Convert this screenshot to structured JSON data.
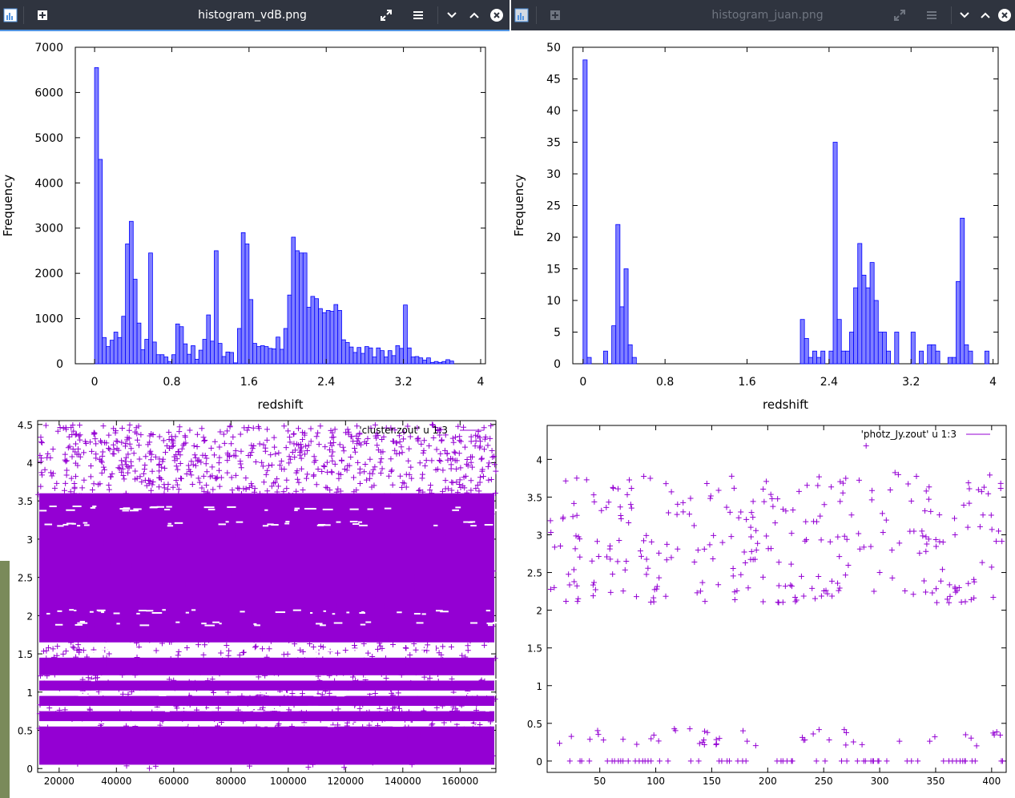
{
  "windows": {
    "top_left": {
      "title": "histogram_vdB.png"
    },
    "top_right": {
      "title": "histogram_juan.png"
    }
  },
  "icons": {
    "app": "image-viewer-icon",
    "new": "new-tab-icon",
    "fullscreen": "fullscreen-icon",
    "menu": "hamburger-menu-icon",
    "min": "chevron-down-icon",
    "max": "chevron-up-icon",
    "close": "close-icon"
  },
  "colors": {
    "bar_fill": "#8080ff",
    "bar_edge": "#0000ff",
    "scatter": "#9400d3",
    "titlebar": "#2f343f",
    "accent": "#5294e2"
  },
  "chart_data": [
    {
      "type": "bar",
      "xlabel": "redshift",
      "ylabel": "Frequency",
      "xlim": [
        -0.2,
        4.05
      ],
      "ylim": [
        0,
        7000
      ],
      "x_ticks": [
        "0",
        "0.8",
        "1.6",
        "2.4",
        "3.2",
        "4"
      ],
      "y_ticks": [
        "0",
        "1000",
        "2000",
        "3000",
        "4000",
        "5000",
        "6000",
        "7000"
      ],
      "bin_width": 0.04,
      "bin_start": 0.0,
      "values": [
        6550,
        4520,
        580,
        380,
        520,
        700,
        580,
        1050,
        2650,
        3150,
        1870,
        900,
        310,
        540,
        2450,
        480,
        200,
        200,
        150,
        50,
        200,
        880,
        820,
        440,
        210,
        400,
        100,
        300,
        540,
        1080,
        500,
        2500,
        450,
        160,
        260,
        250,
        20,
        780,
        2900,
        2650,
        1420,
        450,
        380,
        400,
        380,
        340,
        330,
        590,
        320,
        780,
        1520,
        2800,
        2500,
        2450,
        2450,
        1250,
        1490,
        1440,
        1220,
        1130,
        1180,
        1160,
        1310,
        1180,
        530,
        470,
        370,
        250,
        360,
        230,
        380,
        350,
        150,
        350,
        290,
        150,
        290,
        180,
        400,
        340,
        1300,
        350,
        150,
        160,
        130,
        80,
        130,
        30,
        50,
        30,
        50,
        90,
        60
      ],
      "grid": false
    },
    {
      "type": "bar",
      "xlabel": "redshift",
      "ylabel": "Frequency",
      "xlim": [
        -0.1,
        4.05
      ],
      "ylim": [
        0,
        50
      ],
      "x_ticks": [
        "0",
        "0.8",
        "1.6",
        "2.4",
        "3.2",
        "4"
      ],
      "y_ticks": [
        "0",
        "5",
        "10",
        "15",
        "20",
        "25",
        "30",
        "35",
        "40",
        "45",
        "50"
      ],
      "bin_width": 0.04,
      "bin_start": 0.0,
      "values": [
        48,
        1,
        0,
        0,
        0,
        2,
        0,
        6,
        22,
        9,
        15,
        3,
        1,
        0,
        0,
        0,
        0,
        0,
        0,
        0,
        0,
        0,
        0,
        0,
        0,
        0,
        0,
        0,
        0,
        0,
        0,
        0,
        0,
        0,
        0,
        0,
        0,
        0,
        0,
        0,
        0,
        0,
        0,
        0,
        0,
        0,
        0,
        0,
        0,
        0,
        0,
        0,
        0,
        7,
        4,
        1,
        2,
        1,
        2,
        0,
        2,
        35,
        7,
        2,
        2,
        5,
        12,
        19,
        14,
        12,
        16,
        10,
        5,
        5,
        2,
        0,
        5,
        0,
        0,
        0,
        5,
        0,
        2,
        0,
        3,
        3,
        2,
        0,
        0,
        1,
        1,
        13,
        23,
        3,
        2,
        0,
        0,
        0,
        2
      ],
      "grid": false
    },
    {
      "type": "scatter",
      "legend": "'cluster.zout' u 1:3",
      "legend_position": "top-right",
      "xlim": [
        12500,
        172500
      ],
      "ylim": [
        -0.05,
        4.55
      ],
      "x_ticks": [
        20000,
        40000,
        60000,
        80000,
        100000,
        120000,
        140000,
        160000
      ],
      "y_ticks": [
        0,
        0.5,
        1,
        1.5,
        2,
        2.5,
        3,
        3.5,
        4,
        4.5
      ],
      "y_tick_labels": [
        "0",
        "0.5",
        "1",
        "1.5",
        "2",
        "2.5",
        "3",
        "3.5",
        "4",
        "4.5"
      ],
      "marker": "+",
      "density_bands": [
        {
          "from": 0.0,
          "to": 0.55,
          "density": "very high"
        },
        {
          "from": 0.6,
          "to": 1.5,
          "density": "high"
        },
        {
          "from": 1.6,
          "to": 3.6,
          "density": "very high"
        },
        {
          "from": 3.6,
          "to": 4.5,
          "density": "sparse"
        }
      ]
    },
    {
      "type": "scatter",
      "legend": "'photz_Jy.zout' u 1:3",
      "legend_position": "top-right",
      "xlim": [
        3,
        413
      ],
      "ylim": [
        -0.15,
        4.45
      ],
      "x_ticks": [
        50,
        100,
        150,
        200,
        250,
        300,
        350,
        400
      ],
      "y_ticks": [
        0,
        0.5,
        1,
        1.5,
        2,
        2.5,
        3,
        3.5,
        4
      ],
      "y_tick_labels": [
        "0",
        "0.5",
        "1",
        "1.5",
        "2",
        "2.5",
        "3",
        "3.5",
        "4"
      ],
      "marker": "+",
      "points_note": "~410 points: one group at z 0–0.45, another at z 2.1–4.3"
    }
  ]
}
